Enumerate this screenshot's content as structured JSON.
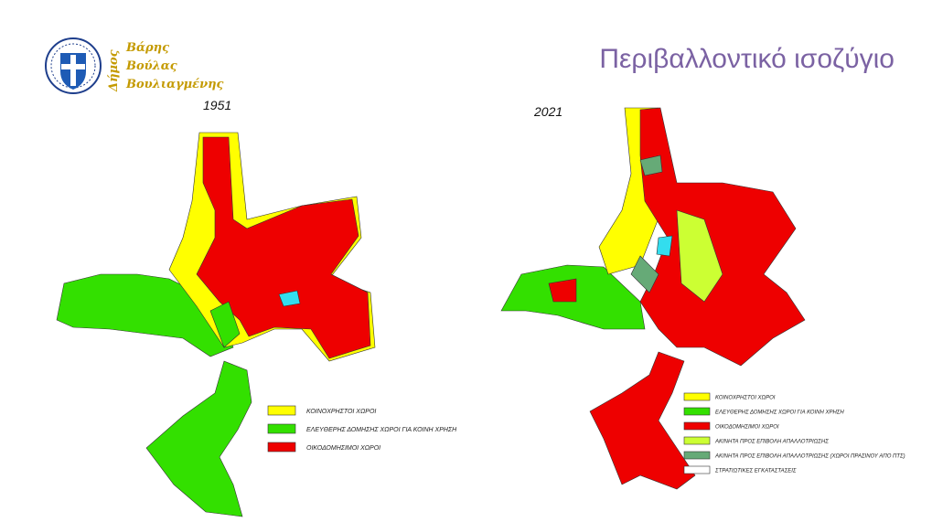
{
  "header": {
    "logo_vertical": "Δήμος",
    "logo_lines": [
      "Βάρης",
      "Βούλας",
      "Βουλιαγμένης"
    ],
    "title": "Περιβαλλοντικό ισοζύγιο"
  },
  "maps": [
    {
      "year": "1951",
      "legend": [
        {
          "label": "ΚΟΙΝΟΧΡΗΣΤΟΙ ΧΩΡΟΙ",
          "color": "#ffff00"
        },
        {
          "label": "ΕΛΕΥΘΕΡΗΣ ΔΟΜΗΣΗΣ ΧΩΡΟΙ ΓΙΑ ΚΟΙΝΗ ΧΡΗΣΗ",
          "color": "#33e000"
        },
        {
          "label": "ΟΙΚΟΔΟΜΗΣΙΜΟΙ ΧΩΡΟΙ",
          "color": "#ee0000"
        }
      ]
    },
    {
      "year": "2021",
      "legend": [
        {
          "label": "ΚΟΙΝΟΧΡΗΣΤΟΙ ΧΩΡΟΙ",
          "color": "#ffff00"
        },
        {
          "label": "ΕΛΕΥΘΕΡΗΣ ΔΟΜΗΣΗΣ ΧΩΡΟΙ ΓΙΑ ΚΟΙΝΗ ΧΡΗΣΗ",
          "color": "#33e000"
        },
        {
          "label": "ΟΙΚΟΔΟΜΗΣΙΜΟΙ ΧΩΡΟΙ",
          "color": "#ee0000"
        },
        {
          "label": "ΑΚΙΝΗΤΑ ΠΡΟΣ ΕΠΙΒΟΛΗ ΑΠΑΛΛΟΤΡΙΩΣΗΣ",
          "color": "#ccff33"
        },
        {
          "label": "ΑΚΙΝΗΤΑ ΠΡΟΣ ΕΠΙΒΟΛΗ ΑΠΑΛΛΟΤΡΙΩΣΗΣ (ΧΩΡΟΙ ΠΡΑΣΙΝΟΥ ΑΠΟ ΠΤΣ)",
          "color": "#66aa77"
        },
        {
          "label": "ΣΤΡΑΤΙΩΤΙΚΕΣ ΕΓΚΑΤΑΣΤΑΣΕΙΣ",
          "color": "#ffffff"
        }
      ]
    }
  ]
}
